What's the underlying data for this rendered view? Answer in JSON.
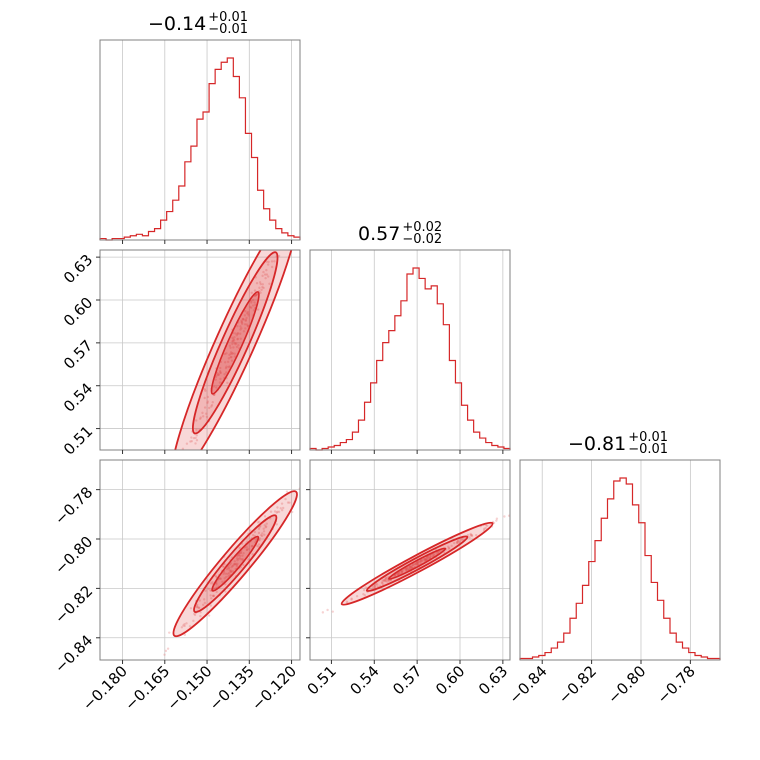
{
  "chart_data": {
    "type": "corner",
    "color": "#d62728",
    "parameters": [
      {
        "title_value": "−0.14",
        "title_plus": "+0.01",
        "title_minus": "−0.01",
        "range": [
          -0.188,
          -0.117
        ],
        "ticks": [
          -0.18,
          -0.165,
          -0.15,
          -0.135,
          -0.12
        ],
        "tick_labels": [
          "−0.180",
          "−0.165",
          "−0.150",
          "−0.135",
          "−0.120"
        ]
      },
      {
        "title_value": "0.57",
        "title_plus": "+0.02",
        "title_minus": "−0.02",
        "range": [
          0.495,
          0.635
        ],
        "ticks": [
          0.51,
          0.54,
          0.57,
          0.6,
          0.63
        ],
        "tick_labels": [
          "0.51",
          "0.54",
          "0.57",
          "0.60",
          "0.63"
        ]
      },
      {
        "title_value": "−0.81",
        "title_plus": "+0.01",
        "title_minus": "−0.01",
        "range": [
          -0.849,
          -0.768
        ],
        "ticks": [
          -0.84,
          -0.82,
          -0.8,
          -0.78
        ],
        "tick_labels": [
          "−0.84",
          "−0.82",
          "−0.80",
          "−0.78"
        ]
      }
    ],
    "histograms": [
      {
        "param": 0,
        "counts": [
          1,
          0,
          1,
          1,
          2,
          3,
          4,
          3,
          6,
          8,
          14,
          20,
          28,
          38,
          55,
          66,
          85,
          90,
          110,
          120,
          125,
          128,
          115,
          100,
          75,
          58,
          35,
          22,
          14,
          8,
          5,
          3,
          2
        ]
      },
      {
        "param": 1,
        "counts": [
          1,
          0,
          1,
          2,
          3,
          5,
          7,
          12,
          20,
          32,
          45,
          60,
          72,
          80,
          90,
          100,
          118,
          122,
          115,
          108,
          110,
          98,
          84,
          60,
          45,
          30,
          20,
          12,
          8,
          5,
          3,
          2,
          1
        ]
      },
      {
        "param": 2,
        "counts": [
          1,
          1,
          2,
          3,
          5,
          8,
          12,
          18,
          28,
          38,
          50,
          66,
          80,
          95,
          108,
          120,
          122,
          118,
          104,
          92,
          70,
          52,
          40,
          28,
          18,
          12,
          8,
          5,
          3,
          2,
          1,
          1
        ]
      }
    ],
    "panels": [
      {
        "row": 1,
        "col": 0,
        "x_param": 0,
        "y_param": 1,
        "slope": 4.4,
        "spread": 0.006
      },
      {
        "row": 2,
        "col": 0,
        "x_param": 0,
        "y_param": 2,
        "slope": 1.35,
        "spread": 0.0025
      },
      {
        "row": 2,
        "col": 1,
        "x_param": 1,
        "y_param": 2,
        "slope": 0.31,
        "spread": 0.0007
      }
    ]
  }
}
